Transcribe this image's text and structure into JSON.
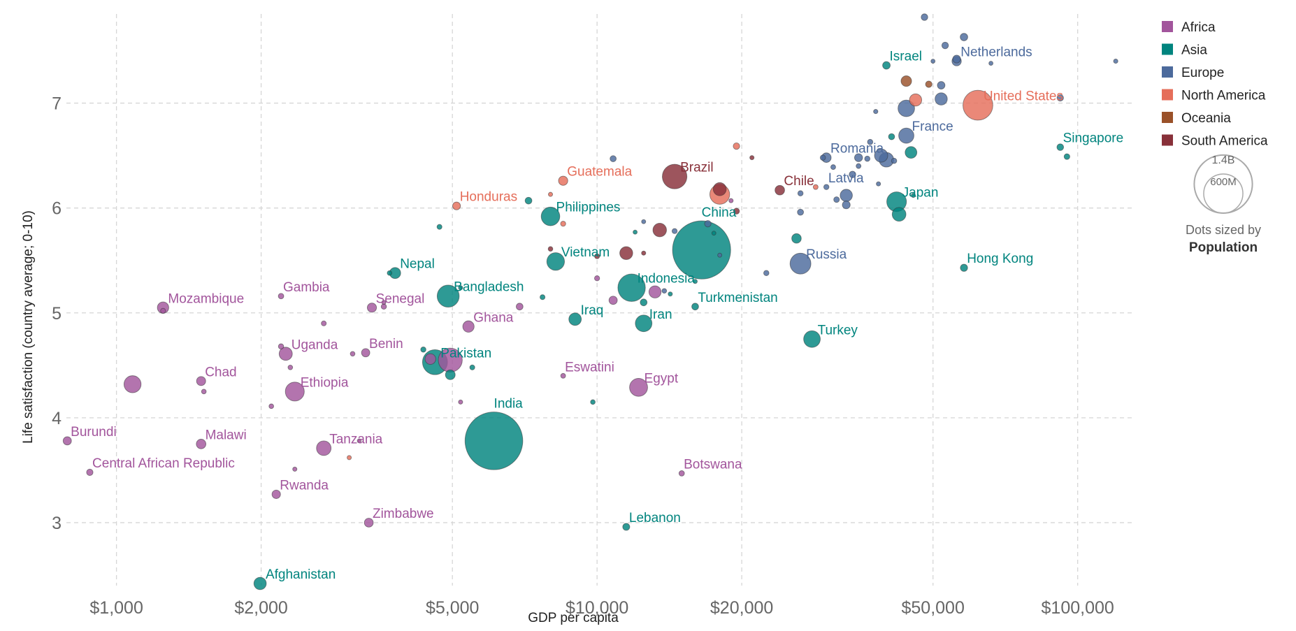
{
  "chart_data": {
    "type": "scatter",
    "xscale": "log",
    "xlabel": "GDP per capita",
    "ylabel": "Life satisfaction (country average; 0-10)",
    "xlim": [
      800,
      130000
    ],
    "ylim": [
      2.4,
      7.85
    ],
    "xticks": [
      {
        "v": 1000,
        "t": "$1,000"
      },
      {
        "v": 2000,
        "t": "$2,000"
      },
      {
        "v": 5000,
        "t": "$5,000"
      },
      {
        "v": 10000,
        "t": "$10,000"
      },
      {
        "v": 20000,
        "t": "$20,000"
      },
      {
        "v": 50000,
        "t": "$50,000"
      },
      {
        "v": 100000,
        "t": "$100,000"
      }
    ],
    "yticks": [
      3,
      4,
      5,
      6,
      7
    ],
    "grid": true,
    "size_legend": {
      "big_label": "1.4B",
      "small_label": "600M",
      "big_pop": 1400,
      "small_pop": 600,
      "note_line1": "Dots sized by",
      "note_line2": "Population"
    },
    "legend": [
      {
        "name": "Africa",
        "color": "#a2559c"
      },
      {
        "name": "Asia",
        "color": "#00847e"
      },
      {
        "name": "Europe",
        "color": "#4c6a9c"
      },
      {
        "name": "North America",
        "color": "#e56e5a"
      },
      {
        "name": "Oceania",
        "color": "#9a5129"
      },
      {
        "name": "South America",
        "color": "#883039"
      }
    ],
    "labeled_points": [
      {
        "name": "Netherlands",
        "x": 56000,
        "y": 7.4,
        "pop": 17.5,
        "region": "Europe"
      },
      {
        "name": "Israel",
        "x": 40000,
        "y": 7.36,
        "pop": 9,
        "region": "Asia"
      },
      {
        "name": "United States",
        "x": 62000,
        "y": 6.98,
        "pop": 330,
        "region": "North America"
      },
      {
        "name": "France",
        "x": 44000,
        "y": 6.69,
        "pop": 67,
        "region": "Europe"
      },
      {
        "name": "Singapore",
        "x": 92000,
        "y": 6.58,
        "pop": 5.7,
        "region": "Asia"
      },
      {
        "name": "Romania",
        "x": 30000,
        "y": 6.48,
        "pop": 19,
        "region": "Europe"
      },
      {
        "name": "Brazil",
        "x": 14500,
        "y": 6.3,
        "pop": 212,
        "region": "South America"
      },
      {
        "name": "Guatemala",
        "x": 8500,
        "y": 6.26,
        "pop": 17,
        "region": "North America"
      },
      {
        "name": "Chile",
        "x": 24000,
        "y": 6.17,
        "pop": 19,
        "region": "South America"
      },
      {
        "name": "Latvia",
        "x": 30000,
        "y": 6.2,
        "pop": 1.9,
        "region": "Europe"
      },
      {
        "name": "Japan",
        "x": 42000,
        "y": 6.06,
        "pop": 126,
        "region": "Asia"
      },
      {
        "name": "Honduras",
        "x": 5100,
        "y": 6.02,
        "pop": 10,
        "region": "North America"
      },
      {
        "name": "Philippines",
        "x": 8000,
        "y": 5.92,
        "pop": 110,
        "region": "Asia"
      },
      {
        "name": "China",
        "x": 16500,
        "y": 5.6,
        "pop": 1400,
        "region": "Asia"
      },
      {
        "name": "Russia",
        "x": 26500,
        "y": 5.47,
        "pop": 145,
        "region": "Europe"
      },
      {
        "name": "Hong Kong",
        "x": 58000,
        "y": 5.43,
        "pop": 7.5,
        "region": "Asia"
      },
      {
        "name": "Vietnam",
        "x": 8200,
        "y": 5.49,
        "pop": 97,
        "region": "Asia"
      },
      {
        "name": "Nepal",
        "x": 3800,
        "y": 5.38,
        "pop": 29,
        "region": "Asia"
      },
      {
        "name": "Indonesia",
        "x": 11800,
        "y": 5.24,
        "pop": 273,
        "region": "Asia"
      },
      {
        "name": "Gambia",
        "x": 2200,
        "y": 5.16,
        "pop": 2.4,
        "region": "Africa"
      },
      {
        "name": "Bangladesh",
        "x": 4900,
        "y": 5.16,
        "pop": 165,
        "region": "Asia"
      },
      {
        "name": "Mozambique",
        "x": 1250,
        "y": 5.05,
        "pop": 31,
        "region": "Africa"
      },
      {
        "name": "Senegal",
        "x": 3400,
        "y": 5.05,
        "pop": 16.7,
        "region": "Africa"
      },
      {
        "name": "Turkmenistan",
        "x": 16000,
        "y": 5.06,
        "pop": 6,
        "region": "Asia"
      },
      {
        "name": "Iraq",
        "x": 9000,
        "y": 4.94,
        "pop": 40,
        "region": "Asia"
      },
      {
        "name": "Iran",
        "x": 12500,
        "y": 4.9,
        "pop": 84,
        "region": "Asia"
      },
      {
        "name": "Ghana",
        "x": 5400,
        "y": 4.87,
        "pop": 31,
        "region": "Africa"
      },
      {
        "name": "Turkey",
        "x": 28000,
        "y": 4.75,
        "pop": 84,
        "region": "Asia"
      },
      {
        "name": "Uganda",
        "x": 2250,
        "y": 4.61,
        "pop": 46,
        "region": "Africa"
      },
      {
        "name": "Benin",
        "x": 3300,
        "y": 4.62,
        "pop": 12,
        "region": "Africa"
      },
      {
        "name": "Pakistan",
        "x": 4600,
        "y": 4.53,
        "pop": 220,
        "region": "Asia"
      },
      {
        "name": "Eswatini",
        "x": 8500,
        "y": 4.4,
        "pop": 1.2,
        "region": "Africa"
      },
      {
        "name": "Chad",
        "x": 1500,
        "y": 4.35,
        "pop": 16,
        "region": "Africa"
      },
      {
        "name": "Ethiopia",
        "x": 2350,
        "y": 4.25,
        "pop": 115,
        "region": "Africa"
      },
      {
        "name": "Egypt",
        "x": 12200,
        "y": 4.29,
        "pop": 102,
        "region": "Africa"
      },
      {
        "name": "India",
        "x": 6100,
        "y": 3.78,
        "pop": 1380,
        "region": "Asia"
      },
      {
        "name": "Burundi",
        "x": 790,
        "y": 3.78,
        "pop": 12,
        "region": "Africa"
      },
      {
        "name": "Malawi",
        "x": 1500,
        "y": 3.75,
        "pop": 19,
        "region": "Africa"
      },
      {
        "name": "Tanzania",
        "x": 2700,
        "y": 3.71,
        "pop": 60,
        "region": "Africa"
      },
      {
        "name": "Central African Republic",
        "x": 880,
        "y": 3.48,
        "pop": 4.8,
        "region": "Africa"
      },
      {
        "name": "Botswana",
        "x": 15000,
        "y": 3.47,
        "pop": 2.3,
        "region": "Africa"
      },
      {
        "name": "Rwanda",
        "x": 2150,
        "y": 3.27,
        "pop": 13,
        "region": "Africa"
      },
      {
        "name": "Zimbabwe",
        "x": 3350,
        "y": 3.0,
        "pop": 15,
        "region": "Africa"
      },
      {
        "name": "Lebanon",
        "x": 11500,
        "y": 2.96,
        "pop": 6.8,
        "region": "Asia"
      },
      {
        "name": "Afghanistan",
        "x": 1990,
        "y": 2.42,
        "pop": 39,
        "region": "Asia"
      }
    ],
    "other_points": [
      {
        "x": 48000,
        "y": 7.82,
        "pop": 5.5,
        "region": "Europe"
      },
      {
        "x": 58000,
        "y": 7.63,
        "pop": 8.6,
        "region": "Europe"
      },
      {
        "x": 53000,
        "y": 7.55,
        "pop": 5.4,
        "region": "Europe"
      },
      {
        "x": 56000,
        "y": 7.42,
        "pop": 10,
        "region": "Europe"
      },
      {
        "x": 50000,
        "y": 7.4,
        "pop": 0.4,
        "region": "Europe"
      },
      {
        "x": 66000,
        "y": 7.38,
        "pop": 0.4,
        "region": "Europe"
      },
      {
        "x": 120000,
        "y": 7.4,
        "pop": 0.6,
        "region": "Europe"
      },
      {
        "x": 92000,
        "y": 7.05,
        "pop": 5,
        "region": "Europe"
      },
      {
        "x": 52000,
        "y": 7.17,
        "pop": 9,
        "region": "Europe"
      },
      {
        "x": 52000,
        "y": 7.04,
        "pop": 38,
        "region": "Europe"
      },
      {
        "x": 44000,
        "y": 7.21,
        "pop": 25,
        "region": "Oceania"
      },
      {
        "x": 49000,
        "y": 7.18,
        "pop": 5,
        "region": "Oceania"
      },
      {
        "x": 46000,
        "y": 7.03,
        "pop": 38,
        "region": "North America"
      },
      {
        "x": 44000,
        "y": 6.95,
        "pop": 83,
        "region": "Europe"
      },
      {
        "x": 38000,
        "y": 6.92,
        "pop": 0.6,
        "region": "Europe"
      },
      {
        "x": 95000,
        "y": 6.49,
        "pop": 2.9,
        "region": "Asia"
      },
      {
        "x": 45000,
        "y": 6.53,
        "pop": 34,
        "region": "Asia"
      },
      {
        "x": 41000,
        "y": 6.68,
        "pop": 4,
        "region": "Asia"
      },
      {
        "x": 37000,
        "y": 6.63,
        "pop": 2.1,
        "region": "Europe"
      },
      {
        "x": 35000,
        "y": 6.48,
        "pop": 10.7,
        "region": "Europe"
      },
      {
        "x": 36500,
        "y": 6.47,
        "pop": 2.1,
        "region": "Europe"
      },
      {
        "x": 39000,
        "y": 6.5,
        "pop": 47,
        "region": "Europe"
      },
      {
        "x": 40000,
        "y": 6.46,
        "pop": 60,
        "region": "Europe"
      },
      {
        "x": 41500,
        "y": 6.45,
        "pop": 2.1,
        "region": "Europe"
      },
      {
        "x": 38500,
        "y": 6.23,
        "pop": 0.5,
        "region": "Europe"
      },
      {
        "x": 35000,
        "y": 6.4,
        "pop": 1.3,
        "region": "Europe"
      },
      {
        "x": 31000,
        "y": 6.39,
        "pop": 1.3,
        "region": "Europe"
      },
      {
        "x": 34000,
        "y": 6.32,
        "pop": 5.4,
        "region": "Europe"
      },
      {
        "x": 29500,
        "y": 6.48,
        "pop": 2.1,
        "region": "Europe"
      },
      {
        "x": 33000,
        "y": 6.12,
        "pop": 38,
        "region": "Europe"
      },
      {
        "x": 31500,
        "y": 6.08,
        "pop": 2.8,
        "region": "Europe"
      },
      {
        "x": 33000,
        "y": 6.03,
        "pop": 10,
        "region": "Europe"
      },
      {
        "x": 26500,
        "y": 6.14,
        "pop": 2,
        "region": "Europe"
      },
      {
        "x": 26500,
        "y": 5.96,
        "pop": 4,
        "region": "Europe"
      },
      {
        "x": 28500,
        "y": 6.2,
        "pop": 1.3,
        "region": "North America"
      },
      {
        "x": 42500,
        "y": 5.94,
        "pop": 52,
        "region": "Asia"
      },
      {
        "x": 45500,
        "y": 6.12,
        "pop": 0.4,
        "region": "Asia"
      },
      {
        "x": 21000,
        "y": 6.48,
        "pop": 0.5,
        "region": "South America"
      },
      {
        "x": 19500,
        "y": 6.59,
        "pop": 5,
        "region": "North America"
      },
      {
        "x": 18000,
        "y": 6.13,
        "pop": 128,
        "region": "North America"
      },
      {
        "x": 19500,
        "y": 5.97,
        "pop": 3.5,
        "region": "South America"
      },
      {
        "x": 18000,
        "y": 6.18,
        "pop": 45,
        "region": "South America"
      },
      {
        "x": 19000,
        "y": 6.07,
        "pop": 0.5,
        "region": "Africa"
      },
      {
        "x": 17000,
        "y": 5.85,
        "pop": 5,
        "region": "Europe"
      },
      {
        "x": 17500,
        "y": 5.76,
        "pop": 0.4,
        "region": "Asia"
      },
      {
        "x": 18000,
        "y": 5.55,
        "pop": 0.4,
        "region": "Europe"
      },
      {
        "x": 22500,
        "y": 5.38,
        "pop": 2,
        "region": "Europe"
      },
      {
        "x": 26000,
        "y": 5.71,
        "pop": 18.5,
        "region": "Asia"
      },
      {
        "x": 12500,
        "y": 5.57,
        "pop": 0.5,
        "region": "South America"
      },
      {
        "x": 13500,
        "y": 5.79,
        "pop": 50,
        "region": "South America"
      },
      {
        "x": 11500,
        "y": 5.57,
        "pop": 44,
        "region": "South America"
      },
      {
        "x": 12000,
        "y": 5.77,
        "pop": 0.4,
        "region": "Asia"
      },
      {
        "x": 12500,
        "y": 5.87,
        "pop": 0.4,
        "region": "Europe"
      },
      {
        "x": 14500,
        "y": 5.78,
        "pop": 1.7,
        "region": "Europe"
      },
      {
        "x": 10800,
        "y": 6.47,
        "pop": 4,
        "region": "Europe"
      },
      {
        "x": 8500,
        "y": 5.85,
        "pop": 1.7,
        "region": "North America"
      },
      {
        "x": 8000,
        "y": 6.13,
        "pop": 0.5,
        "region": "North America"
      },
      {
        "x": 8000,
        "y": 5.61,
        "pop": 1,
        "region": "South America"
      },
      {
        "x": 7200,
        "y": 6.07,
        "pop": 6,
        "region": "Asia"
      },
      {
        "x": 10000,
        "y": 5.33,
        "pop": 1.7,
        "region": "Africa"
      },
      {
        "x": 10000,
        "y": 5.54,
        "pop": 1.5,
        "region": "South America"
      },
      {
        "x": 10800,
        "y": 5.12,
        "pop": 12,
        "region": "Africa"
      },
      {
        "x": 12500,
        "y": 5.1,
        "pop": 6,
        "region": "Asia"
      },
      {
        "x": 13200,
        "y": 5.2,
        "pop": 37,
        "region": "Africa"
      },
      {
        "x": 13800,
        "y": 5.21,
        "pop": 1,
        "region": "Europe"
      },
      {
        "x": 14200,
        "y": 5.18,
        "pop": 0.5,
        "region": "Asia"
      },
      {
        "x": 16000,
        "y": 5.3,
        "pop": 0.5,
        "region": "Asia"
      },
      {
        "x": 7700,
        "y": 5.15,
        "pop": 1.5,
        "region": "Asia"
      },
      {
        "x": 6900,
        "y": 5.06,
        "pop": 6,
        "region": "Africa"
      },
      {
        "x": 4700,
        "y": 5.82,
        "pop": 1.5,
        "region": "Asia"
      },
      {
        "x": 5200,
        "y": 5.24,
        "pop": 0.5,
        "region": "Asia"
      },
      {
        "x": 3600,
        "y": 5.06,
        "pop": 2,
        "region": "Africa"
      },
      {
        "x": 3600,
        "y": 5.1,
        "pop": 0.4,
        "region": "Africa"
      },
      {
        "x": 3700,
        "y": 5.38,
        "pop": 1,
        "region": "Asia"
      },
      {
        "x": 2700,
        "y": 4.9,
        "pop": 1.4,
        "region": "Africa"
      },
      {
        "x": 3100,
        "y": 4.61,
        "pop": 1,
        "region": "Africa"
      },
      {
        "x": 2200,
        "y": 4.68,
        "pop": 2,
        "region": "Africa"
      },
      {
        "x": 2300,
        "y": 4.48,
        "pop": 1,
        "region": "Africa"
      },
      {
        "x": 1250,
        "y": 5.02,
        "pop": 1.5,
        "region": "Africa"
      },
      {
        "x": 1080,
        "y": 4.32,
        "pop": 89,
        "region": "Africa"
      },
      {
        "x": 1520,
        "y": 4.25,
        "pop": 1,
        "region": "Africa"
      },
      {
        "x": 2100,
        "y": 4.11,
        "pop": 1,
        "region": "Africa"
      },
      {
        "x": 4500,
        "y": 4.56,
        "pop": 26,
        "region": "Africa"
      },
      {
        "x": 4950,
        "y": 4.55,
        "pop": 200,
        "region": "Africa"
      },
      {
        "x": 4950,
        "y": 4.41,
        "pop": 20,
        "region": "Asia"
      },
      {
        "x": 4350,
        "y": 4.65,
        "pop": 2,
        "region": "Asia"
      },
      {
        "x": 5500,
        "y": 4.48,
        "pop": 1.5,
        "region": "Asia"
      },
      {
        "x": 5200,
        "y": 4.15,
        "pop": 0.5,
        "region": "Africa"
      },
      {
        "x": 9800,
        "y": 4.15,
        "pop": 1,
        "region": "Asia"
      },
      {
        "x": 3050,
        "y": 3.62,
        "pop": 0.5,
        "region": "North America"
      },
      {
        "x": 2350,
        "y": 3.51,
        "pop": 0.5,
        "region": "Africa"
      },
      {
        "x": 3200,
        "y": 3.78,
        "pop": 0.3,
        "region": "Africa"
      }
    ]
  }
}
